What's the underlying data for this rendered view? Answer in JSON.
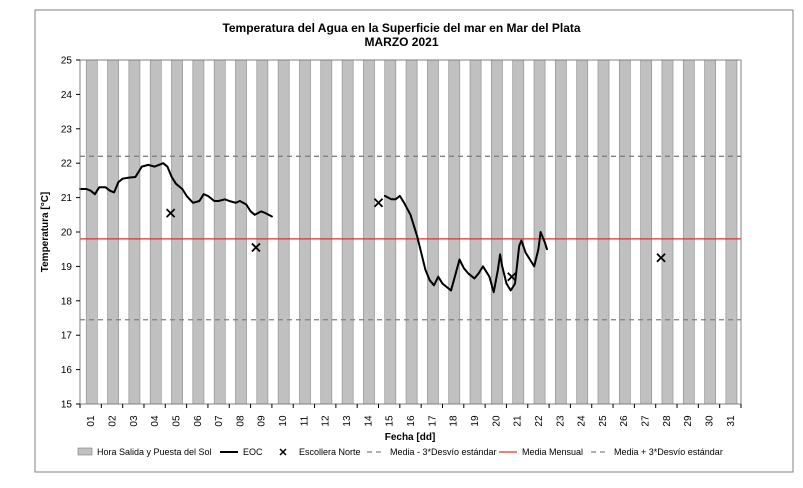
{
  "chart_data": {
    "type": "line",
    "title": "Temperatura del Agua en la Superficie del mar en Mar del Plata",
    "subtitle": "MARZO 2021",
    "xlabel": "Fecha [dd]",
    "ylabel": "Temperatura [°C]",
    "ylim": [
      15,
      25
    ],
    "yticks": [
      15,
      16,
      17,
      18,
      19,
      20,
      21,
      22,
      23,
      24,
      25
    ],
    "xlim": [
      1,
      32
    ],
    "xtick_labels": [
      "01",
      "02",
      "03",
      "04",
      "05",
      "06",
      "07",
      "08",
      "09",
      "10",
      "11",
      "12",
      "13",
      "14",
      "15",
      "16",
      "17",
      "18",
      "19",
      "20",
      "21",
      "22",
      "23",
      "24",
      "25",
      "26",
      "27",
      "28",
      "29",
      "30",
      "31"
    ],
    "grid": "off",
    "legend_position": "bottom",
    "daylight_bars": {
      "name": "Hora Salida y Puesta del Sol",
      "color": "#c0c0c0",
      "start_hour": 7,
      "end_hour": 19.5
    },
    "series": [
      {
        "name": "EOC",
        "color": "#000000",
        "kind": "line",
        "segments": [
          [
            [
              1.0,
              21.25
            ],
            [
              1.3,
              21.25
            ],
            [
              1.5,
              21.2
            ],
            [
              1.7,
              21.1
            ],
            [
              1.9,
              21.3
            ],
            [
              2.2,
              21.3
            ],
            [
              2.4,
              21.2
            ],
            [
              2.6,
              21.15
            ],
            [
              2.8,
              21.45
            ],
            [
              3.0,
              21.55
            ],
            [
              3.3,
              21.58
            ],
            [
              3.6,
              21.6
            ],
            [
              3.9,
              21.9
            ],
            [
              4.2,
              21.95
            ],
            [
              4.5,
              21.9
            ],
            [
              4.7,
              21.95
            ],
            [
              4.9,
              22.0
            ],
            [
              5.1,
              21.9
            ],
            [
              5.3,
              21.6
            ],
            [
              5.5,
              21.4
            ],
            [
              5.8,
              21.25
            ],
            [
              6.0,
              21.05
            ],
            [
              6.3,
              20.85
            ],
            [
              6.6,
              20.9
            ],
            [
              6.8,
              21.1
            ],
            [
              7.0,
              21.05
            ],
            [
              7.3,
              20.9
            ],
            [
              7.5,
              20.9
            ],
            [
              7.8,
              20.95
            ],
            [
              8.0,
              20.9
            ],
            [
              8.3,
              20.85
            ],
            [
              8.5,
              20.9
            ],
            [
              8.8,
              20.8
            ],
            [
              9.0,
              20.6
            ],
            [
              9.2,
              20.5
            ],
            [
              9.5,
              20.6
            ],
            [
              9.7,
              20.55
            ],
            [
              10.0,
              20.45
            ]
          ],
          [
            [
              15.3,
              21.05
            ],
            [
              15.6,
              20.95
            ],
            [
              15.8,
              20.95
            ],
            [
              16.0,
              21.05
            ],
            [
              16.2,
              20.85
            ],
            [
              16.5,
              20.5
            ],
            [
              16.8,
              19.9
            ],
            [
              17.0,
              19.4
            ],
            [
              17.2,
              18.9
            ],
            [
              17.4,
              18.6
            ],
            [
              17.6,
              18.45
            ],
            [
              17.8,
              18.7
            ],
            [
              18.0,
              18.5
            ],
            [
              18.2,
              18.4
            ],
            [
              18.4,
              18.3
            ],
            [
              18.6,
              18.75
            ],
            [
              18.8,
              19.2
            ],
            [
              19.0,
              18.95
            ],
            [
              19.2,
              18.8
            ],
            [
              19.4,
              18.7
            ],
            [
              19.5,
              18.65
            ],
            [
              19.7,
              18.8
            ],
            [
              19.9,
              19.0
            ],
            [
              20.0,
              18.9
            ],
            [
              20.2,
              18.7
            ],
            [
              20.4,
              18.25
            ],
            [
              20.6,
              18.9
            ],
            [
              20.7,
              19.35
            ],
            [
              20.8,
              19.0
            ],
            [
              21.0,
              18.5
            ],
            [
              21.2,
              18.3
            ],
            [
              21.4,
              18.5
            ],
            [
              21.6,
              19.6
            ],
            [
              21.7,
              19.75
            ],
            [
              21.9,
              19.4
            ],
            [
              22.1,
              19.2
            ],
            [
              22.3,
              19.0
            ],
            [
              22.5,
              19.5
            ],
            [
              22.6,
              20.0
            ],
            [
              22.8,
              19.7
            ],
            [
              22.9,
              19.5
            ]
          ]
        ]
      },
      {
        "name": "Escollera Norte",
        "color": "#000000",
        "kind": "marker-x",
        "points": [
          [
            5.25,
            20.55
          ],
          [
            9.25,
            19.55
          ],
          [
            15.0,
            20.85
          ],
          [
            21.25,
            18.7
          ],
          [
            28.25,
            19.25
          ]
        ]
      }
    ],
    "reference_lines": [
      {
        "name": "Media - 3*Desvío estándar",
        "value": 17.45,
        "color": "#808080",
        "dash": true
      },
      {
        "name": "Media Mensual",
        "value": 19.8,
        "color": "#e03030",
        "dash": false
      },
      {
        "name": "Media + 3*Desvío estándar",
        "value": 22.2,
        "color": "#808080",
        "dash": true
      }
    ]
  }
}
